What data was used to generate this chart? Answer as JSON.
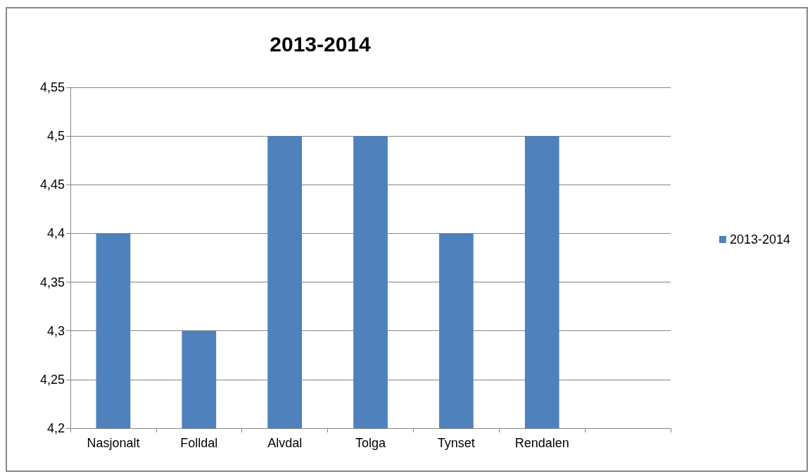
{
  "chart_data": {
    "type": "bar",
    "title": "2013-2014",
    "categories": [
      "Nasjonalt",
      "Folldal",
      "Alvdal",
      "Tolga",
      "Tynset",
      "Rendalen",
      null
    ],
    "series": [
      {
        "name": "2013-2014",
        "color": "#4f81bd",
        "values": [
          4.4,
          4.3,
          4.5,
          4.5,
          4.4,
          4.5,
          null
        ]
      }
    ],
    "ylim": [
      4.2,
      4.55
    ],
    "yticks": [
      {
        "value": 4.2,
        "label": "4,2"
      },
      {
        "value": 4.25,
        "label": "4,25"
      },
      {
        "value": 4.3,
        "label": "4,3"
      },
      {
        "value": 4.35,
        "label": "4,35"
      },
      {
        "value": 4.4,
        "label": "4,4"
      },
      {
        "value": 4.45,
        "label": "4,45"
      },
      {
        "value": 4.5,
        "label": "4,5"
      },
      {
        "value": 4.55,
        "label": "4,55"
      }
    ],
    "grid": "y",
    "legend": "right"
  }
}
